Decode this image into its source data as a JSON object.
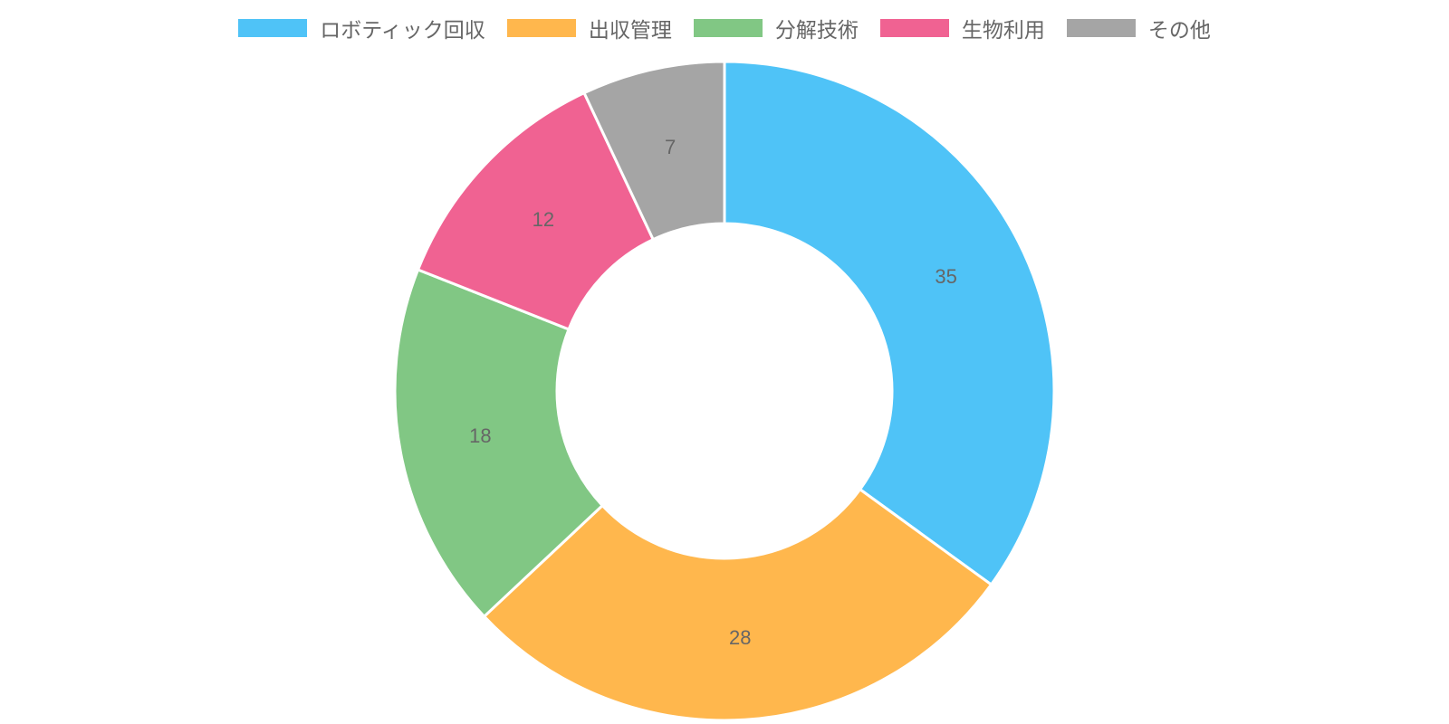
{
  "chart_data": {
    "type": "doughnut",
    "categories": [
      "ロボティック回収",
      "出収管理",
      "分解技術",
      "生物利用",
      "その他"
    ],
    "values": [
      35,
      28,
      18,
      12,
      7
    ],
    "colors": [
      "#4fc3f7",
      "#ffb74d",
      "#81c784",
      "#f06292",
      "#a5a5a5"
    ],
    "legend": "top"
  }
}
